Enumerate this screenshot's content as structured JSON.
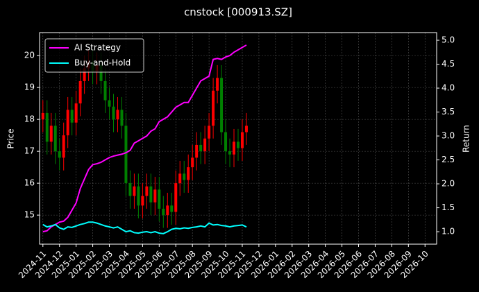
{
  "chart_data": {
    "type": "candlestick",
    "title": "cnstock [000913.SZ]",
    "ylabel": "Price",
    "y2label": "Return",
    "up_color": "red",
    "down_color": "green",
    "grid": true,
    "legend": "upper left",
    "x": [
      0,
      0.25,
      0.5,
      0.75,
      1,
      1.25,
      1.5,
      1.75,
      2,
      2.25,
      2.5,
      2.75,
      3,
      3.25,
      3.5,
      3.75,
      4,
      4.25,
      4.5,
      4.75,
      5,
      5.25,
      5.5,
      5.75,
      6,
      6.25,
      6.5,
      6.75,
      7,
      7.25,
      7.5,
      7.75,
      8,
      8.25,
      8.5,
      8.75,
      9,
      9.25,
      9.5,
      9.75,
      10,
      10.25,
      10.5,
      10.75,
      11,
      11.25,
      11.5,
      11.75,
      12,
      12.25
    ],
    "open": [
      18.0,
      18.2,
      17.3,
      17.8,
      17.0,
      16.8,
      17.5,
      18.3,
      17.9,
      18.5,
      19.2,
      19.6,
      19.8,
      19.5,
      19.7,
      19.2,
      18.6,
      18.4,
      18.0,
      18.3,
      17.8,
      16.0,
      15.6,
      15.9,
      15.3,
      15.6,
      15.9,
      15.4,
      15.8,
      15.2,
      15.0,
      15.3,
      15.1,
      16.0,
      16.3,
      16.1,
      16.5,
      16.8,
      17.2,
      17.0,
      17.4,
      17.8,
      18.9,
      19.3,
      17.6,
      17.0,
      16.9,
      17.3,
      17.1,
      17.6
    ],
    "high": [
      18.6,
      18.6,
      18.2,
      18.2,
      17.4,
      17.9,
      18.7,
      18.7,
      18.9,
      19.6,
      20.0,
      20.2,
      20.2,
      20.1,
      20.1,
      19.6,
      19.0,
      18.8,
      18.7,
      18.7,
      18.2,
      16.4,
      16.3,
      16.3,
      16.0,
      16.3,
      16.3,
      16.2,
      16.2,
      15.6,
      15.7,
      15.7,
      16.4,
      16.7,
      16.7,
      16.9,
      17.2,
      17.6,
      17.6,
      17.8,
      18.2,
      19.3,
      19.7,
      19.7,
      18.0,
      17.4,
      17.7,
      17.7,
      18.0,
      18.2
    ],
    "low": [
      17.6,
      16.9,
      16.9,
      16.6,
      16.4,
      16.4,
      17.1,
      17.5,
      17.5,
      18.1,
      18.8,
      19.2,
      19.1,
      19.1,
      18.8,
      18.2,
      18.0,
      17.6,
      17.6,
      17.4,
      15.6,
      15.2,
      15.2,
      14.9,
      14.9,
      15.2,
      15.0,
      15.0,
      14.8,
      14.6,
      14.6,
      14.7,
      14.7,
      15.6,
      15.7,
      15.7,
      16.1,
      16.4,
      16.6,
      16.6,
      17.0,
      17.4,
      18.5,
      17.2,
      16.6,
      16.5,
      16.5,
      16.7,
      16.7,
      17.2
    ],
    "close": [
      18.2,
      17.3,
      17.8,
      17.0,
      16.8,
      17.5,
      18.3,
      17.9,
      18.5,
      19.2,
      19.6,
      19.8,
      19.5,
      19.7,
      19.2,
      18.6,
      18.4,
      18.0,
      18.3,
      17.8,
      16.0,
      15.6,
      15.9,
      15.3,
      15.6,
      15.9,
      15.4,
      15.8,
      15.2,
      15.0,
      15.3,
      15.1,
      16.0,
      16.3,
      16.1,
      16.5,
      16.8,
      17.2,
      17.0,
      17.4,
      17.8,
      18.9,
      19.3,
      17.6,
      17.0,
      16.9,
      17.3,
      17.1,
      17.6,
      17.8
    ],
    "series": [
      {
        "name": "AI Strategy",
        "color": "#ff00ff",
        "axis": "y2",
        "values": [
          1.0,
          1.02,
          1.1,
          1.15,
          1.2,
          1.22,
          1.3,
          1.45,
          1.6,
          1.9,
          2.1,
          2.3,
          2.4,
          2.42,
          2.45,
          2.5,
          2.55,
          2.58,
          2.6,
          2.62,
          2.65,
          2.7,
          2.85,
          2.9,
          2.95,
          3.0,
          3.1,
          3.15,
          3.3,
          3.35,
          3.4,
          3.5,
          3.6,
          3.65,
          3.7,
          3.7,
          3.85,
          4.0,
          4.15,
          4.2,
          4.25,
          4.6,
          4.62,
          4.6,
          4.65,
          4.68,
          4.75,
          4.8,
          4.85,
          4.9
        ]
      },
      {
        "name": "Buy-and-Hold",
        "color": "#00ffff",
        "axis": "y2",
        "values": [
          1.15,
          1.1,
          1.12,
          1.15,
          1.08,
          1.05,
          1.1,
          1.09,
          1.12,
          1.15,
          1.17,
          1.2,
          1.2,
          1.18,
          1.15,
          1.12,
          1.1,
          1.08,
          1.1,
          1.05,
          1.0,
          1.02,
          0.98,
          0.97,
          0.99,
          1.0,
          0.98,
          1.0,
          0.97,
          0.96,
          1.0,
          1.05,
          1.07,
          1.06,
          1.08,
          1.07,
          1.09,
          1.1,
          1.12,
          1.1,
          1.18,
          1.14,
          1.15,
          1.13,
          1.12,
          1.1,
          1.12,
          1.13,
          1.14,
          1.1
        ]
      }
    ],
    "xlim": [
      -0.2,
      23.7
    ],
    "xticks": [
      {
        "value": 0,
        "label": "2024-11"
      },
      {
        "value": 1,
        "label": "2024-12"
      },
      {
        "value": 2,
        "label": "2025-01"
      },
      {
        "value": 3,
        "label": "2025-02"
      },
      {
        "value": 4,
        "label": "2025-03"
      },
      {
        "value": 5,
        "label": "2025-04"
      },
      {
        "value": 6,
        "label": "2025-05"
      },
      {
        "value": 7,
        "label": "2025-06"
      },
      {
        "value": 8,
        "label": "2025-07"
      },
      {
        "value": 9,
        "label": "2025-08"
      },
      {
        "value": 10,
        "label": "2025-09"
      },
      {
        "value": 11,
        "label": "2025-10"
      },
      {
        "value": 12,
        "label": "2025-11"
      },
      {
        "value": 13,
        "label": "2025-12"
      },
      {
        "value": 14,
        "label": "2026-01"
      },
      {
        "value": 15,
        "label": "2026-02"
      },
      {
        "value": 16,
        "label": "2026-03"
      },
      {
        "value": 17,
        "label": "2026-04"
      },
      {
        "value": 18,
        "label": "2026-05"
      },
      {
        "value": 19,
        "label": "2026-06"
      },
      {
        "value": 20,
        "label": "2026-07"
      },
      {
        "value": 21,
        "label": "2026-08"
      },
      {
        "value": 22,
        "label": "2026-09"
      },
      {
        "value": 23,
        "label": "2026-10"
      }
    ],
    "ylim": [
      14.09,
      20.72
    ],
    "yticks": [
      15,
      16,
      17,
      18,
      19,
      20
    ],
    "y2lim": [
      0.74,
      5.16
    ],
    "y2ticks": [
      {
        "value": 1,
        "label": "1.0"
      },
      {
        "value": 1.5,
        "label": "1.5"
      },
      {
        "value": 2,
        "label": "2.0"
      },
      {
        "value": 2.5,
        "label": "2.5"
      },
      {
        "value": 3,
        "label": "3.0"
      },
      {
        "value": 3.5,
        "label": "3.5"
      },
      {
        "value": 4,
        "label": "4.0"
      },
      {
        "value": 4.5,
        "label": "4.5"
      },
      {
        "value": 5,
        "label": "5.0"
      }
    ]
  }
}
